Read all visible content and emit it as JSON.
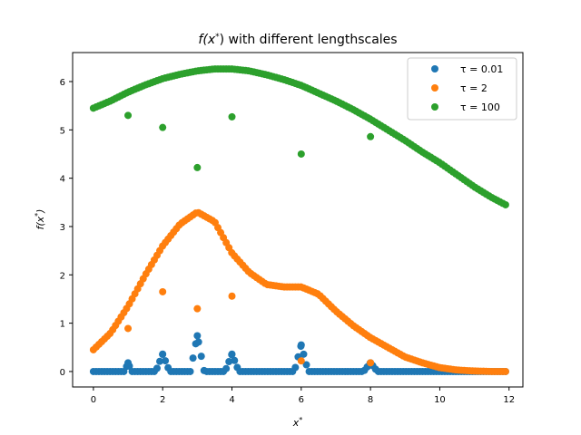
{
  "chart_data": {
    "type": "scatter",
    "title": "f(x*) with different lengthscales",
    "xlabel": "x*",
    "ylabel": "f(x*)",
    "xlim": [
      -0.6,
      12.4
    ],
    "ylim": [
      -0.32,
      6.6
    ],
    "xticks": [
      0,
      2,
      4,
      6,
      8,
      10,
      12
    ],
    "yticks": [
      0,
      1,
      2,
      3,
      4,
      5,
      6
    ],
    "grid": false,
    "legend_position": "top-right",
    "x_range_sampled": [
      0,
      11.9
    ],
    "observations": {
      "x": [
        1,
        2,
        3,
        4,
        6,
        8
      ],
      "values": {
        "tau_0_01": [
          0.18,
          0.36,
          0.74,
          0.36,
          0.55,
          0.18
        ],
        "tau_2": [
          0.89,
          1.65,
          1.3,
          1.56,
          0.22,
          0.18
        ],
        "tau_100": [
          5.3,
          5.05,
          4.22,
          5.27,
          4.5,
          4.86
        ]
      }
    },
    "series": [
      {
        "name": "τ = 0.01",
        "key": "tau_0_01",
        "color": "#1f77b4",
        "curve": {
          "x": [
            0,
            0.9,
            1,
            1.1,
            1.8,
            2,
            2.2,
            2.8,
            3,
            3.2,
            3.8,
            4,
            4.2,
            5.8,
            6,
            6.2,
            7.8,
            8,
            8.2,
            11.9
          ],
          "y": [
            0,
            0,
            0.18,
            0,
            0,
            0.36,
            0,
            0,
            0.74,
            0,
            0,
            0.36,
            0,
            0,
            0.55,
            0,
            0,
            0.18,
            0,
            0
          ]
        }
      },
      {
        "name": "τ = 2",
        "key": "tau_2",
        "color": "#ff7f0e",
        "curve": {
          "x": [
            0,
            0.5,
            1,
            1.5,
            2,
            2.5,
            3,
            3.5,
            4,
            4.5,
            5,
            5.5,
            6,
            6.5,
            7,
            7.5,
            8,
            8.5,
            9,
            9.5,
            10,
            10.5,
            11,
            11.5,
            11.9
          ],
          "y": [
            0.45,
            0.8,
            1.35,
            2.0,
            2.6,
            3.05,
            3.3,
            3.1,
            2.45,
            2.05,
            1.8,
            1.75,
            1.75,
            1.6,
            1.25,
            0.95,
            0.7,
            0.5,
            0.3,
            0.18,
            0.08,
            0.03,
            0.01,
            0.0,
            0.0
          ]
        }
      },
      {
        "name": "τ = 100",
        "key": "tau_100",
        "color": "#2ca02c",
        "curve": {
          "x": [
            0,
            0.5,
            1,
            1.5,
            2,
            2.5,
            3,
            3.5,
            4,
            4.5,
            5,
            5.5,
            6,
            6.5,
            7,
            7.5,
            8,
            8.5,
            9,
            9.5,
            10,
            10.5,
            11,
            11.5,
            11.9
          ],
          "y": [
            5.45,
            5.6,
            5.78,
            5.93,
            6.06,
            6.15,
            6.22,
            6.26,
            6.26,
            6.22,
            6.14,
            6.04,
            5.92,
            5.76,
            5.6,
            5.42,
            5.22,
            5.0,
            4.78,
            4.54,
            4.32,
            4.07,
            3.82,
            3.6,
            3.45
          ]
        }
      }
    ]
  }
}
